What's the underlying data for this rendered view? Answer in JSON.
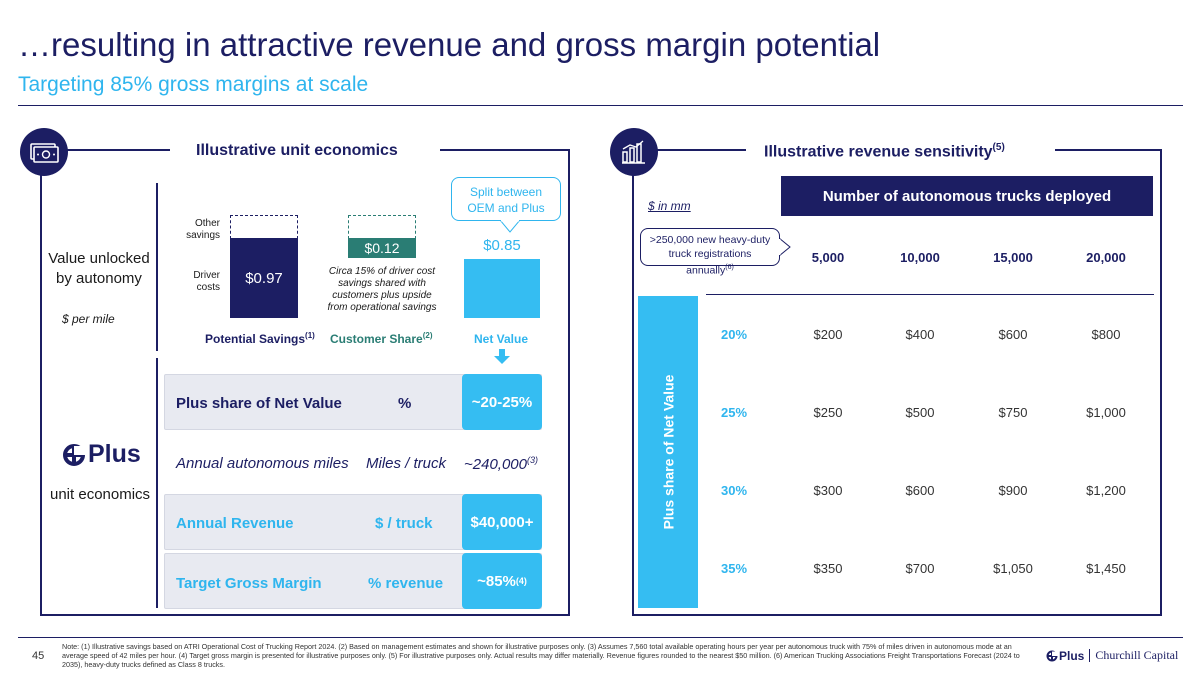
{
  "title": "…resulting in attractive revenue and gross margin potential",
  "subtitle": "Targeting 85% gross margins at scale",
  "left": {
    "heading": "Illustrative unit economics",
    "icon": "money-icon",
    "value_label_1": "Value unlocked",
    "value_label_2": "by autonomy",
    "units": "$ per mile",
    "callout": "Split between OEM and Plus",
    "other_savings": "Other savings",
    "driver_costs": "Driver costs",
    "bar_driver": "$0.97",
    "bar_customer": "$0.12",
    "bar_net": "$0.85",
    "share_note": "Circa 15% of driver cost savings shared with customers plus upside from operational savings",
    "col_potential": "Potential Savings",
    "col_potential_sup": "(1)",
    "col_customer": "Customer Share",
    "col_customer_sup": "(2)",
    "col_net": "Net Value",
    "logo_text": "Plus",
    "logo_caption": "unit economics",
    "rows": [
      {
        "label": "Plus share of Net Value",
        "unit": "%",
        "value": "~20-25%",
        "sup": ""
      },
      {
        "label": "Annual autonomous miles",
        "unit": "Miles / truck",
        "value": "~240,000",
        "sup": "(3)"
      },
      {
        "label": "Annual Revenue",
        "unit": "$ / truck",
        "value": "$40,000+",
        "sup": ""
      },
      {
        "label": "Target Gross Margin",
        "unit": "% revenue",
        "value": "~85%",
        "sup": "(4)"
      }
    ]
  },
  "right": {
    "heading": "Illustrative revenue sensitivity",
    "heading_sup": "(5)",
    "icon": "bar-chart-icon",
    "units": "$ in mm",
    "header_band": "Number of autonomous trucks deployed",
    "callout": ">250,000 new heavy-duty truck registrations annually",
    "callout_sup": "(6)",
    "vertical_label": "Plus share of Net Value",
    "columns": [
      "5,000",
      "10,000",
      "15,000",
      "20,000"
    ],
    "rows": [
      {
        "pct": "20%",
        "values": [
          "$200",
          "$400",
          "$600",
          "$800"
        ]
      },
      {
        "pct": "25%",
        "values": [
          "$250",
          "$500",
          "$750",
          "$1,000"
        ]
      },
      {
        "pct": "30%",
        "values": [
          "$300",
          "$600",
          "$900",
          "$1,200"
        ]
      },
      {
        "pct": "35%",
        "values": [
          "$350",
          "$700",
          "$1,050",
          "$1,450"
        ]
      }
    ]
  },
  "footer": {
    "page": "45",
    "note": "Note: (1) Illustrative savings based on ATRI Operational Cost of Trucking Report 2024. (2) Based on management estimates and shown for illustrative purposes only. (3) Assumes 7,560 total available operating hours per year per autonomous truck with 75% of miles driven in autonomous mode at an average speed of 42 miles per hour. (4) Target gross margin is presented for illustrative purposes only. (5) For illustrative purposes only. Actual results may differ materially. Revenue figures rounded to the nearest $50 million. (6) American Trucking Associations Freight Transportations Forecast (2024 to 2035), heavy-duty trucks defined as Class 8 trucks.",
    "logo_plus": "Plus",
    "logo_partner": "Churchill Capital"
  },
  "colors": {
    "navy": "#1c1e63",
    "cyan": "#35bdf2",
    "teal": "#2a7d74"
  }
}
